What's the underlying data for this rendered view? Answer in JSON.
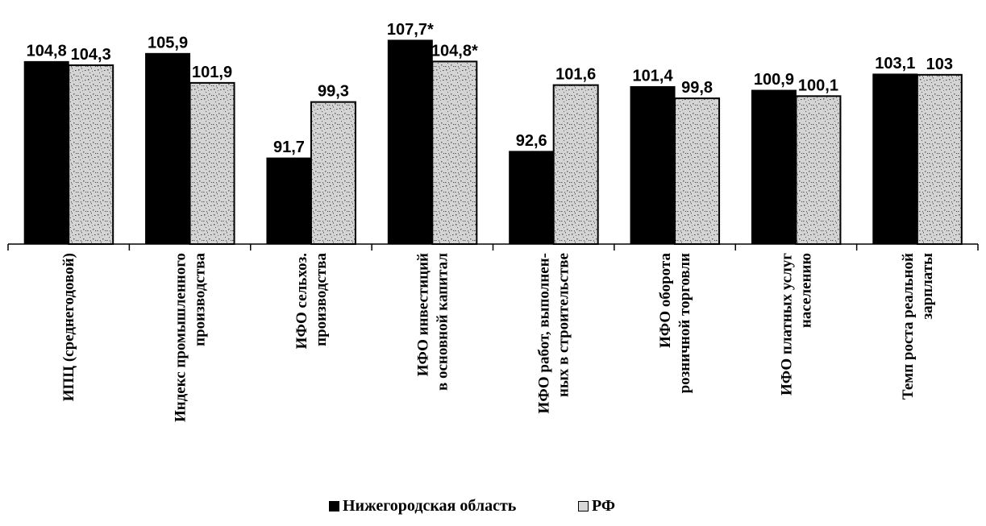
{
  "chart_data": {
    "type": "bar",
    "categories": [
      [
        "ИПЦ (среднегодовой)"
      ],
      [
        "Индекс промышленного",
        "производства"
      ],
      [
        "ИФО сельхоз.",
        "производства"
      ],
      [
        "ИФО инвестиций",
        "в основной капитал"
      ],
      [
        "ИФО работ, выполнен-",
        "ных в строительстве"
      ],
      [
        "ИФО оборота",
        "розничной торговли"
      ],
      [
        "ИФО платных услуг",
        "населению"
      ],
      [
        "Темп роста реальной",
        "зарплаты"
      ]
    ],
    "series": [
      {
        "name": "Нижегородская область",
        "values": [
          104.8,
          105.9,
          91.7,
          107.7,
          92.6,
          101.4,
          100.9,
          103.1
        ],
        "labels": [
          "104,8",
          "105,9",
          "91,7",
          "107,7*",
          "92,6",
          "101,4",
          "100,9",
          "103,1"
        ],
        "color": "#000000"
      },
      {
        "name": "РФ",
        "values": [
          104.3,
          101.9,
          99.3,
          104.8,
          101.6,
          99.8,
          100.1,
          103
        ],
        "labels": [
          "104,3",
          "101,9",
          "99,3",
          "104,8*",
          "101,6",
          "99,8",
          "100,1",
          "103"
        ],
        "color": "#d9d9d9"
      }
    ],
    "ylim": [
      80,
      109
    ],
    "grid": false,
    "legend_position": "bottom"
  }
}
